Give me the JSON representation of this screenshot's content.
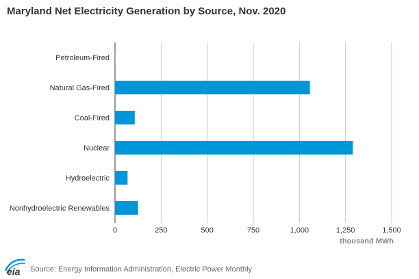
{
  "chart_data": {
    "type": "bar",
    "orientation": "horizontal",
    "title": "Maryland Net Electricity Generation by Source, Nov. 2020",
    "categories": [
      "Petroleum-Fired",
      "Natural Gas-Fired",
      "Coal-Fired",
      "Nuclear",
      "Hydroelectric",
      "Nonhydroelectric Renewables"
    ],
    "values": [
      1,
      1057,
      107,
      1290,
      68,
      125
    ],
    "xlabel": "thousand MWh",
    "ylabel": "",
    "xlim": [
      0,
      1500
    ],
    "ticks": [
      0,
      250,
      500,
      750,
      1000,
      1250,
      1500
    ],
    "tick_labels": [
      "0",
      "250",
      "500",
      "750",
      "1,000",
      "1,250",
      "1,500"
    ],
    "grid": "vertical",
    "bar_color": "#0096d7"
  },
  "footer": {
    "logo_text": "eia",
    "source": "Source: Energy Information Administration, Electric Power Monthly"
  },
  "colors": {
    "grid": "#c8c8c8",
    "axis": "#333333",
    "logo": "#0096d7"
  }
}
